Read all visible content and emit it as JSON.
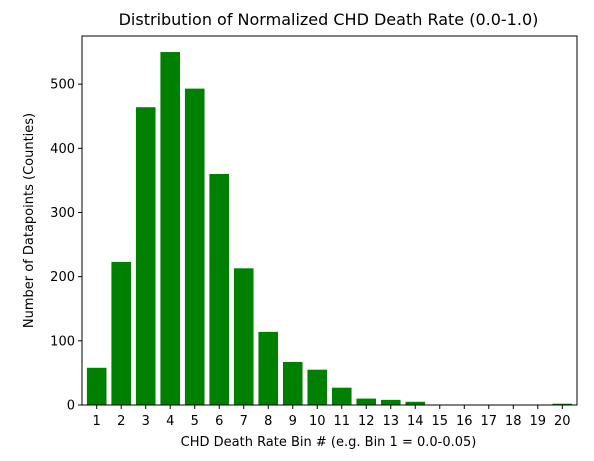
{
  "chart_data": {
    "type": "bar",
    "title": "Distribution of Normalized CHD Death Rate (0.0-1.0)",
    "xlabel": "CHD Death Rate Bin # (e.g. Bin 1 = 0.0-0.05)",
    "ylabel": "Number of Datapoints (Counties)",
    "categories": [
      "1",
      "2",
      "3",
      "4",
      "5",
      "6",
      "7",
      "8",
      "9",
      "10",
      "11",
      "12",
      "13",
      "14",
      "15",
      "16",
      "17",
      "18",
      "19",
      "20"
    ],
    "values": [
      58,
      223,
      464,
      550,
      493,
      360,
      213,
      114,
      67,
      55,
      27,
      10,
      8,
      5,
      0,
      0,
      0,
      0,
      0,
      2
    ],
    "ylim": [
      0,
      575
    ],
    "yticks": [
      0,
      100,
      200,
      300,
      400,
      500
    ],
    "ytick_labels": [
      "0",
      "100",
      "200",
      "300",
      "400",
      "500"
    ],
    "bar_color": "#008000",
    "grid": false
  }
}
